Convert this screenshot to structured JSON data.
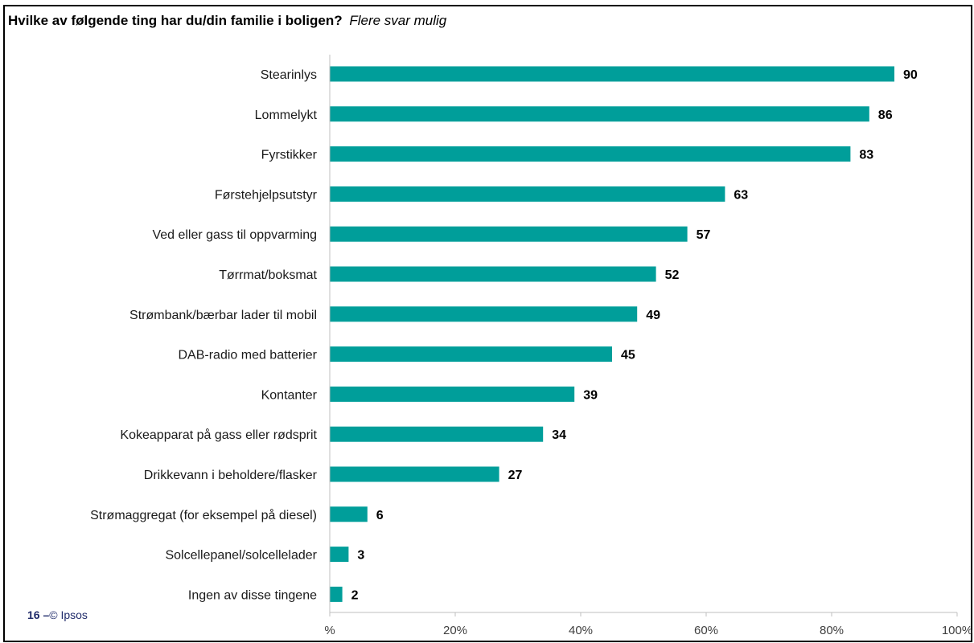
{
  "title": {
    "main": "Hvilke av følgende ting har du/din familie i boligen?",
    "sub": "Flere svar mulig"
  },
  "footer": {
    "page": "16",
    "dash": "–",
    "copyright": "© Ipsos"
  },
  "colors": {
    "bar": "#009e9a",
    "axis": "#bfbfbf"
  },
  "chart_data": {
    "type": "bar",
    "orientation": "horizontal",
    "categories": [
      "Stearinlys",
      "Lommelykt",
      "Fyrstikker",
      "Førstehjelpsutstyr",
      "Ved eller gass til oppvarming",
      "Tørrmat/boksmat",
      "Strømbank/bærbar lader til mobil",
      "DAB-radio med batterier",
      "Kontanter",
      "Kokeapparat på gass eller rødsprit",
      "Drikkevann i beholdere/flasker",
      "Strømaggregat (for eksempel på diesel)",
      "Solcellepanel/solcellelader",
      "Ingen av disse tingene"
    ],
    "values": [
      90,
      86,
      83,
      63,
      57,
      52,
      49,
      45,
      39,
      34,
      27,
      6,
      3,
      2
    ],
    "xlim": [
      0,
      100
    ],
    "xticks": [
      "%",
      "20%",
      "40%",
      "60%",
      "80%",
      "100%"
    ],
    "grid": false,
    "title": "Hvilke av følgende ting har du/din familie i boligen?"
  }
}
